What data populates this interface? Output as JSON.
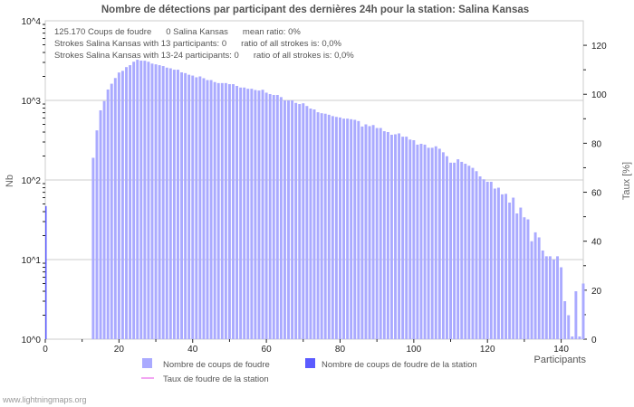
{
  "chart_data": {
    "type": "bar",
    "title": "Nombre de détections par participant des dernières 24h pour la station: Salina  Kansas",
    "xlabel": "Participants",
    "ylabel": "Nb",
    "y2label": "Taux [%]",
    "yscale": "log",
    "ylim": [
      1,
      10000
    ],
    "y2lim": [
      0,
      130
    ],
    "xlim": [
      0,
      146
    ],
    "y_ticks": [
      "10^0",
      "10^1",
      "10^2",
      "10^3",
      "10^4"
    ],
    "x_ticks": [
      0,
      20,
      40,
      60,
      80,
      100,
      120,
      140
    ],
    "y2_ticks": [
      0,
      20,
      40,
      60,
      80,
      100,
      120
    ],
    "info_lines": [
      [
        "125.170  Coups de foudre",
        "0 Salina  Kansas",
        "mean ratio: 0%"
      ],
      [
        "Strokes Salina  Kansas with 13 participants: 0",
        "ratio of all strokes is: 0,0%"
      ],
      [
        "Strokes Salina  Kansas with 13-24 participants: 0",
        "ratio of all strokes is: 0,0%"
      ]
    ],
    "zero_bar": {
      "x": 0,
      "value": 47
    },
    "x_start": 13,
    "series": [
      {
        "name": "Nombre de coups de foudre",
        "color": "#aaaaff",
        "values": [
          190,
          420,
          750,
          980,
          1370,
          1620,
          1910,
          2240,
          2350,
          2620,
          2770,
          3060,
          3240,
          3160,
          3150,
          3060,
          2900,
          2840,
          2770,
          2700,
          2580,
          2530,
          2430,
          2430,
          2250,
          2200,
          2100,
          2050,
          1950,
          2000,
          1900,
          1800,
          1800,
          1700,
          1650,
          1650,
          1650,
          1600,
          1600,
          1520,
          1450,
          1450,
          1400,
          1400,
          1350,
          1330,
          1360,
          1250,
          1200,
          1170,
          1170,
          1100,
          1000,
          1000,
          1000,
          930,
          900,
          920,
          850,
          790,
          770,
          710,
          690,
          680,
          660,
          635,
          620,
          610,
          590,
          590,
          580,
          570,
          550,
          470,
          500,
          475,
          490,
          450,
          450,
          410,
          400,
          370,
          375,
          385,
          350,
          350,
          322,
          316,
          278,
          285,
          278,
          254,
          254,
          265,
          247,
          223,
          199,
          165,
          165,
          182,
          169,
          160,
          151,
          142,
          129,
          111,
          102,
          95,
          95,
          78,
          80,
          66,
          67,
          52,
          60,
          38,
          45,
          34,
          32,
          17,
          22,
          19,
          13,
          11,
          11,
          10,
          11,
          8,
          3,
          2,
          1,
          4,
          1,
          5
        ]
      },
      {
        "name": "Nombre de coups de foudre de la station",
        "color": "#5b5bff",
        "values": []
      },
      {
        "name": "Taux de foudre de la station",
        "color": "#ee88ee",
        "values": []
      }
    ],
    "legend_position": "bottom"
  },
  "footer": "www.lightningmaps.org"
}
